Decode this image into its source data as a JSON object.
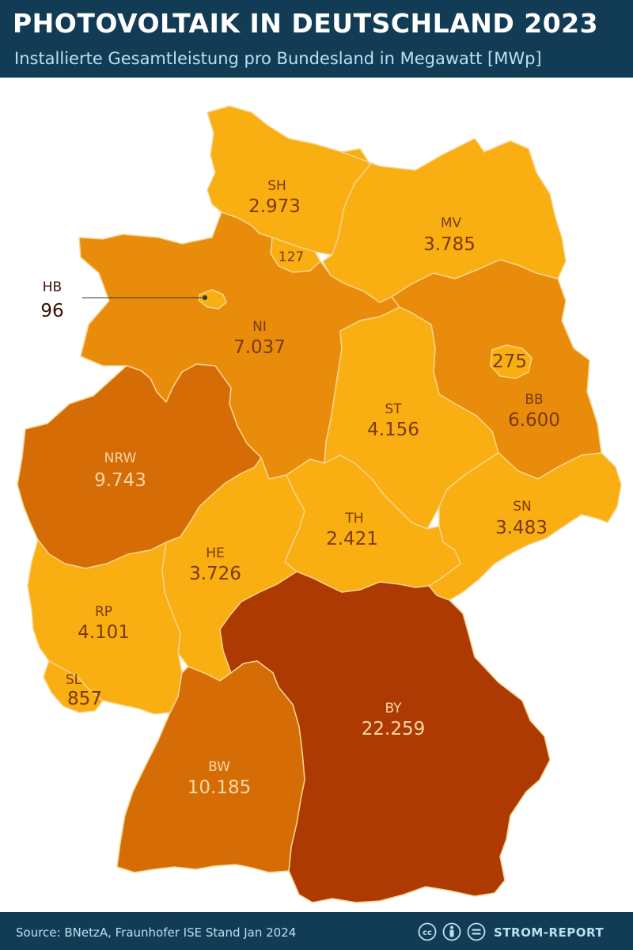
{
  "title": "PHOTOVOLTAIK IN DEUTSCHLAND 2023",
  "subtitle": "Installierte Gesamtleistung pro Bundesland in Megawatt [MWp]",
  "states": {
    "SH": {
      "abbr": "SH",
      "value": "2.973",
      "value_mwp": 2973,
      "color": "#f9ae12"
    },
    "HH": {
      "abbr": "",
      "value": "127",
      "value_mwp": 127,
      "color": "#f9ae12"
    },
    "MV": {
      "abbr": "MV",
      "value": "3.785",
      "value_mwp": 3785,
      "color": "#f9ae12"
    },
    "HB": {
      "abbr": "HB",
      "value": "96",
      "value_mwp": 96,
      "color": "#f9ae12"
    },
    "NI": {
      "abbr": "NI",
      "value": "7.037",
      "value_mwp": 7037,
      "color": "#e98b0b"
    },
    "BE": {
      "abbr": "",
      "value": "275",
      "value_mwp": 275,
      "color": "#f9ae12"
    },
    "BB": {
      "abbr": "BB",
      "value": "6.600",
      "value_mwp": 6600,
      "color": "#e98b0b"
    },
    "ST": {
      "abbr": "ST",
      "value": "4.156",
      "value_mwp": 4156,
      "color": "#f9ae12"
    },
    "NRW": {
      "abbr": "NRW",
      "value": "9.743",
      "value_mwp": 9743,
      "color": "#d66c06"
    },
    "TH": {
      "abbr": "TH",
      "value": "2.421",
      "value_mwp": 2421,
      "color": "#f9ae12"
    },
    "SN": {
      "abbr": "SN",
      "value": "3.483",
      "value_mwp": 3483,
      "color": "#f9ae12"
    },
    "HE": {
      "abbr": "HE",
      "value": "3.726",
      "value_mwp": 3726,
      "color": "#f9ae12"
    },
    "RP": {
      "abbr": "RP",
      "value": "4.101",
      "value_mwp": 4101,
      "color": "#f9ae12"
    },
    "SL": {
      "abbr": "SL",
      "value": "857",
      "value_mwp": 857,
      "color": "#f9ae12"
    },
    "BY": {
      "abbr": "BY",
      "value": "22.259",
      "value_mwp": 22259,
      "color": "#ac3a02"
    },
    "BW": {
      "abbr": "BW",
      "value": "10.185",
      "value_mwp": 10185,
      "color": "#d66c06"
    }
  },
  "footer": {
    "source": "Source: BNetzA, Fraunhofer ISE Stand Jan 2024",
    "license_icons": [
      "cc-icon",
      "by-icon",
      "nd-icon"
    ],
    "brand": "STROM-REPORT"
  },
  "colors": {
    "header_bg": "#123c55",
    "light_label": "#7a3a0a",
    "dark_label": "#f6d9a8",
    "border": "#f6d58f"
  }
}
